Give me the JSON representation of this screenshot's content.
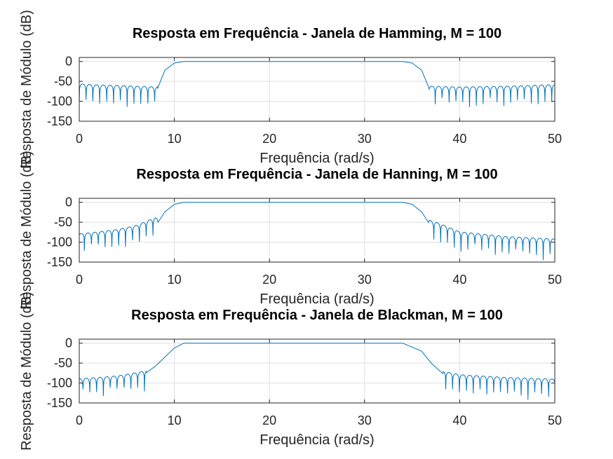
{
  "chart_data": [
    {
      "type": "line",
      "title": "Resposta em Frequência - Janela de Hamming, M = 100",
      "xlabel": "Frequência (rad/s)",
      "ylabel": "Resposta de Módulo (dB)",
      "xlim": [
        0,
        50
      ],
      "ylim": [
        -150,
        10
      ],
      "xticks": [
        0,
        10,
        20,
        30,
        40,
        50
      ],
      "yticks": [
        0,
        -50,
        -100,
        -150
      ],
      "grid": true,
      "color": "#0072bd",
      "passband": [
        11,
        34
      ],
      "transition": [
        8.3,
        36.7
      ],
      "x": [
        0,
        2,
        4,
        6,
        8.2,
        9,
        10,
        11,
        20,
        30,
        34,
        35,
        36,
        36.8,
        40,
        45,
        50
      ],
      "y": [
        -62,
        -65,
        -66,
        -68,
        -70,
        -22,
        -4,
        0,
        0,
        0,
        0,
        -4,
        -22,
        -68,
        -70,
        -68,
        -64
      ]
    },
    {
      "type": "line",
      "title": "Resposta em Frequência - Janela de Hanning, M = 100",
      "xlabel": "Frequência (rad/s)",
      "ylabel": "Resposta de Módulo (dB)",
      "xlim": [
        0,
        50
      ],
      "ylim": [
        -150,
        10
      ],
      "xticks": [
        0,
        10,
        20,
        30,
        40,
        50
      ],
      "yticks": [
        0,
        -50,
        -100,
        -150
      ],
      "grid": true,
      "color": "#0072bd",
      "passband": [
        11,
        34
      ],
      "transition": [
        8.3,
        36.7
      ],
      "x": [
        0,
        2,
        4,
        6,
        8,
        8.3,
        9,
        10,
        11,
        20,
        30,
        34,
        35,
        36,
        36.7,
        38,
        40,
        45,
        50
      ],
      "y": [
        -85,
        -80,
        -74,
        -64,
        -44,
        -50,
        -24,
        -5,
        0,
        0,
        0,
        0,
        -5,
        -24,
        -50,
        -60,
        -80,
        -92,
        -98
      ]
    },
    {
      "type": "line",
      "title": "Resposta em Frequência - Janela de Blackman, M = 100",
      "xlabel": "Frequência (rad/s)",
      "ylabel": "Resposta de Módulo (dB)",
      "xlim": [
        0,
        50
      ],
      "ylim": [
        -150,
        10
      ],
      "xticks": [
        0,
        10,
        20,
        30,
        40,
        50
      ],
      "yticks": [
        0,
        -50,
        -100,
        -150
      ],
      "grid": true,
      "color": "#0072bd",
      "passband": [
        11,
        34
      ],
      "transition": [
        7.1,
        38.2
      ],
      "x": [
        0,
        2,
        4,
        6,
        7,
        8,
        9,
        10,
        11,
        20,
        30,
        34,
        36,
        37,
        38.2,
        40,
        45,
        50
      ],
      "y": [
        -95,
        -92,
        -88,
        -80,
        -75,
        -58,
        -35,
        -12,
        0,
        0,
        0,
        0,
        -20,
        -50,
        -76,
        -85,
        -92,
        -96
      ]
    }
  ]
}
